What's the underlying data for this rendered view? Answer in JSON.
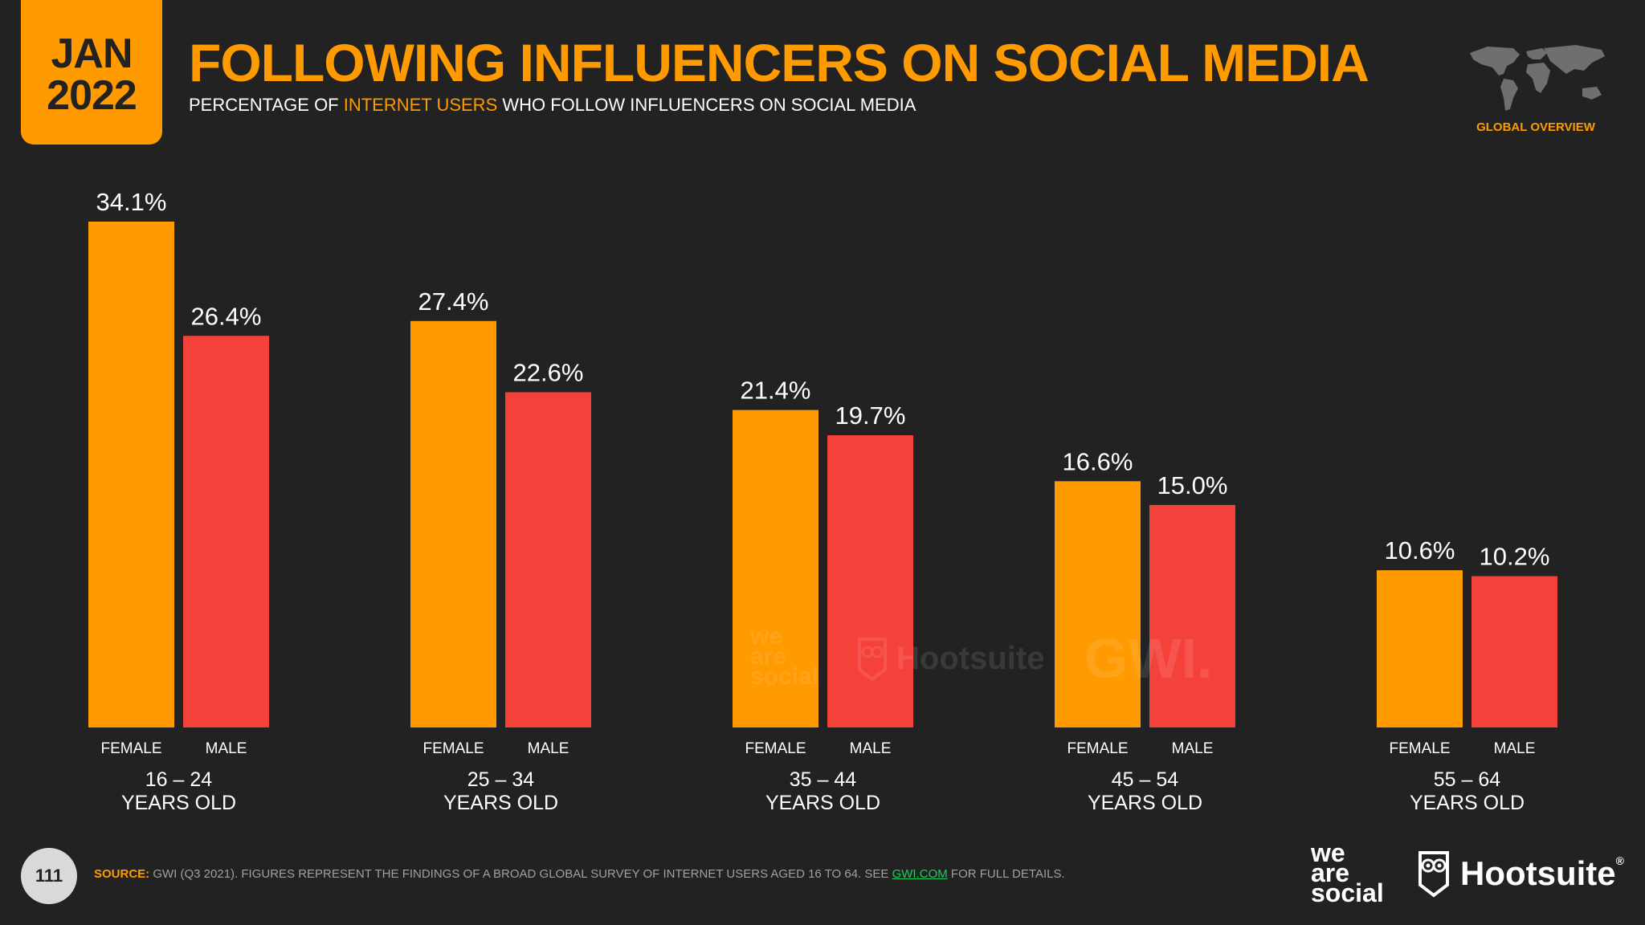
{
  "badge": {
    "month": "JAN",
    "year": "2022"
  },
  "title": "FOLLOWING INFLUENCERS ON SOCIAL MEDIA",
  "subtitle": {
    "prefix": "PERCENTAGE OF ",
    "highlight": "INTERNET USERS",
    "suffix": " WHO FOLLOW INFLUENCERS ON SOCIAL MEDIA"
  },
  "corner": {
    "label": "GLOBAL OVERVIEW",
    "icon": "world-map-icon"
  },
  "watermarks": {
    "was_1": "we",
    "was_2": "are",
    "was_3": "social",
    "hootsuite": "Hootsuite",
    "gwi": "GWI."
  },
  "footer": {
    "page_number": "111",
    "source_label": "SOURCE:",
    "source_text": " GWI (Q3 2021). FIGURES REPRESENT THE FINDINGS OF A BROAD GLOBAL SURVEY OF INTERNET USERS AGED 16 TO 64. SEE ",
    "source_link": "GWI.COM",
    "source_end": " FOR FULL DETAILS.",
    "logo_was_1": "we",
    "logo_was_2": "are",
    "logo_was_3": "social",
    "logo_hootsuite": "Hootsuite",
    "logo_reg": "®"
  },
  "colors": {
    "background": "#222222",
    "female": "#ff9a00",
    "male": "#f4423a",
    "text": "#ffffff"
  },
  "chart_data": {
    "type": "bar",
    "title": "FOLLOWING INFLUENCERS ON SOCIAL MEDIA",
    "ylabel": "Percentage of internet users",
    "ylim": [
      0,
      34.1
    ],
    "categories": [
      {
        "line1": "16 – 24",
        "line2": "YEARS OLD"
      },
      {
        "line1": "25 – 34",
        "line2": "YEARS OLD"
      },
      {
        "line1": "35 – 44",
        "line2": "YEARS OLD"
      },
      {
        "line1": "45 – 54",
        "line2": "YEARS OLD"
      },
      {
        "line1": "55 – 64",
        "line2": "YEARS OLD"
      }
    ],
    "series": [
      {
        "name": "FEMALE",
        "color": "#ff9a00",
        "values": [
          34.1,
          27.4,
          21.4,
          16.6,
          10.6
        ],
        "labels": [
          "34.1%",
          "27.4%",
          "21.4%",
          "16.6%",
          "10.6%"
        ]
      },
      {
        "name": "MALE",
        "color": "#f4423a",
        "values": [
          26.4,
          22.6,
          19.7,
          15.0,
          10.2
        ],
        "labels": [
          "26.4%",
          "22.6%",
          "19.7%",
          "15.0%",
          "10.2%"
        ]
      }
    ]
  }
}
